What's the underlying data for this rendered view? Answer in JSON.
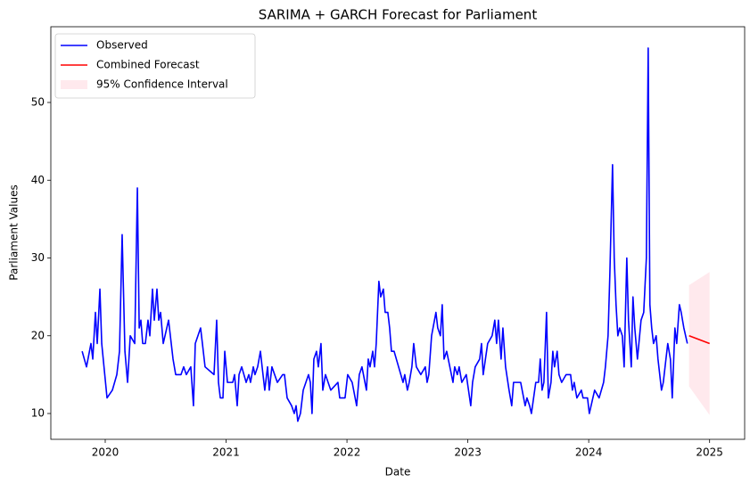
{
  "chart_data": {
    "type": "line",
    "title": "SARIMA + GARCH Forecast for Parliament",
    "x_label": "Date",
    "y_label": "Parliament Values",
    "xlim": [
      2019.55,
      2025.29
    ],
    "ylim": [
      6.68,
      59.74
    ],
    "xticks": [
      2020,
      2021,
      2022,
      2023,
      2024,
      2025
    ],
    "yticks": [
      10,
      20,
      30,
      40,
      50
    ],
    "grid": false,
    "legend": "upper left",
    "series": [
      {
        "name": "Observed",
        "color": "#0000ff",
        "x": [
          2019.809,
          2019.845,
          2019.882,
          2019.897,
          2019.919,
          2019.934,
          2019.956,
          2019.971,
          2020.015,
          2020.059,
          2020.096,
          2020.118,
          2020.14,
          2020.163,
          2020.185,
          2020.207,
          2020.244,
          2020.266,
          2020.281,
          2020.295,
          2020.31,
          2020.332,
          2020.354,
          2020.369,
          2020.391,
          2020.406,
          2020.428,
          2020.443,
          2020.458,
          2020.48,
          2020.524,
          2020.561,
          2020.583,
          2020.627,
          2020.649,
          2020.671,
          2020.708,
          2020.73,
          2020.745,
          2020.789,
          2020.804,
          2020.826,
          2020.9,
          2020.922,
          2020.937,
          2020.952,
          2020.974,
          2020.989,
          2021.011,
          2021.055,
          2021.07,
          2021.092,
          2021.107,
          2021.129,
          2021.166,
          2021.188,
          2021.202,
          2021.225,
          2021.239,
          2021.261,
          2021.284,
          2021.298,
          2021.32,
          2021.343,
          2021.357,
          2021.379,
          2021.424,
          2021.468,
          2021.483,
          2021.505,
          2021.542,
          2021.564,
          2021.579,
          2021.593,
          2021.615,
          2021.638,
          2021.682,
          2021.697,
          2021.711,
          2021.726,
          2021.748,
          2021.763,
          2021.785,
          2021.8,
          2021.822,
          2021.866,
          2021.925,
          2021.94,
          2021.984,
          2022.006,
          2022.043,
          2022.08,
          2022.102,
          2022.124,
          2022.161,
          2022.176,
          2022.191,
          2022.213,
          2022.228,
          2022.242,
          2022.264,
          2022.279,
          2022.301,
          2022.316,
          2022.338,
          2022.353,
          2022.368,
          2022.39,
          2022.427,
          2022.464,
          2022.478,
          2022.5,
          2022.515,
          2022.537,
          2022.552,
          2022.574,
          2022.611,
          2022.648,
          2022.663,
          2022.677,
          2022.7,
          2022.736,
          2022.751,
          2022.773,
          2022.788,
          2022.803,
          2022.825,
          2022.877,
          2022.891,
          2022.913,
          2022.928,
          2022.95,
          2022.987,
          2023.024,
          2023.039,
          2023.061,
          2023.098,
          2023.113,
          2023.127,
          2023.164,
          2023.201,
          2023.223,
          2023.238,
          2023.253,
          2023.275,
          2023.29,
          2023.312,
          2023.341,
          2023.363,
          2023.378,
          2023.437,
          2023.474,
          2023.489,
          2023.511,
          2023.526,
          2023.562,
          2023.585,
          2023.599,
          2023.614,
          2023.629,
          2023.651,
          2023.666,
          2023.688,
          2023.703,
          2023.717,
          2023.739,
          2023.754,
          2023.776,
          2023.813,
          2023.85,
          2023.865,
          2023.88,
          2023.902,
          2023.939,
          2023.953,
          2023.99,
          2024.005,
          2024.049,
          2024.086,
          2024.123,
          2024.138,
          2024.16,
          2024.175,
          2024.197,
          2024.211,
          2024.226,
          2024.241,
          2024.256,
          2024.278,
          2024.293,
          2024.315,
          2024.329,
          2024.352,
          2024.366,
          2024.381,
          2024.403,
          2024.433,
          2024.455,
          2024.477,
          2024.492,
          2024.506,
          2024.521,
          2024.536,
          2024.558,
          2024.573,
          2024.602,
          2024.617,
          2024.639,
          2024.654,
          2024.676,
          2024.691,
          2024.713,
          2024.728,
          2024.75,
          2024.765,
          2024.787,
          2024.816
        ],
        "values": [
          18,
          16,
          19,
          17,
          23,
          19,
          26,
          19,
          12,
          13,
          15,
          18,
          33,
          18,
          14,
          20,
          19,
          39,
          21,
          22,
          19,
          19,
          22,
          20,
          26,
          22,
          26,
          22,
          23,
          19,
          22,
          17,
          15,
          15,
          16,
          15,
          16,
          11,
          19,
          21,
          19,
          16,
          15,
          22,
          14,
          12,
          12,
          18,
          14,
          14,
          15,
          11,
          15,
          16,
          14,
          15,
          14,
          16,
          15,
          16,
          18,
          16,
          13,
          16,
          13,
          16,
          14,
          15,
          15,
          12,
          11,
          10,
          11,
          9,
          10,
          13,
          15,
          14,
          10,
          17,
          18,
          16,
          19,
          13,
          15,
          13,
          14,
          12,
          12,
          15,
          14,
          11,
          15,
          16,
          13,
          17,
          16,
          18,
          16,
          19,
          27,
          25,
          26,
          23,
          23,
          21,
          18,
          18,
          16,
          14,
          15,
          13,
          14,
          16,
          19,
          16,
          15,
          16,
          14,
          15,
          20,
          23,
          21,
          20,
          24,
          17,
          18,
          14,
          16,
          15,
          16,
          14,
          15,
          11,
          14,
          16,
          17,
          19,
          15,
          19,
          20,
          22,
          19,
          22,
          17,
          21,
          16,
          13,
          11,
          14,
          14,
          11,
          12,
          11,
          10,
          14,
          14,
          17,
          13,
          14,
          23,
          12,
          14,
          18,
          16,
          18,
          15,
          14,
          15,
          15,
          13,
          14,
          12,
          13,
          12,
          12,
          10,
          13,
          12,
          14,
          16,
          20,
          28,
          42,
          30,
          24,
          20,
          21,
          20,
          16,
          30,
          22,
          16,
          25,
          21,
          17,
          22,
          23,
          30,
          57,
          24,
          21,
          19,
          20,
          17,
          13,
          14,
          17,
          19,
          17,
          12,
          21,
          19,
          24,
          23,
          21,
          19
        ]
      },
      {
        "name": "Combined Forecast",
        "color": "#ff0000",
        "x": [
          2024.83,
          2025.0
        ],
        "values": [
          20,
          19
        ]
      }
    ],
    "bands": [
      {
        "name": "95% Confidence Interval",
        "color": "#ffc0cb",
        "x": [
          2024.83,
          2025.0
        ],
        "lower": [
          13.5,
          9.8
        ],
        "upper": [
          26.5,
          28.2
        ]
      }
    ]
  }
}
